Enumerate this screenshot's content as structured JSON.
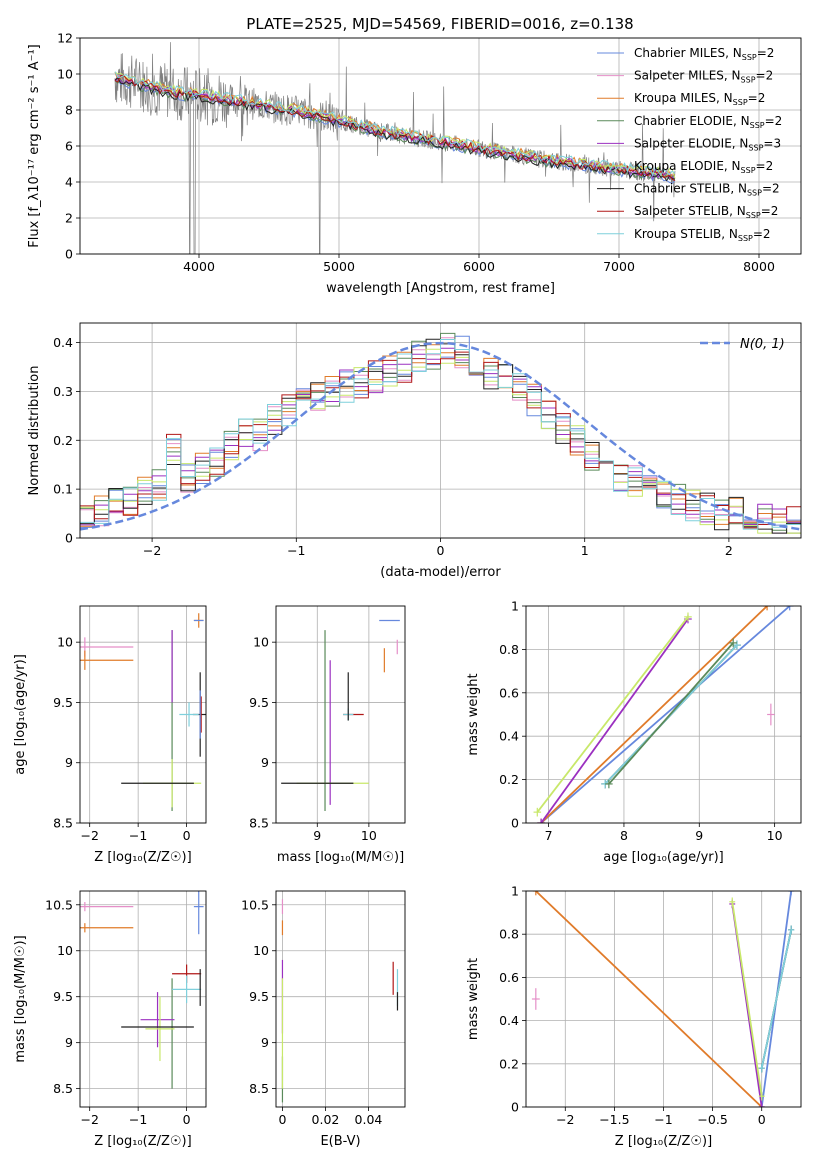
{
  "figure": {
    "title": "PLATE=2525, MJD=54569, FIBERID=0016, z=0.138"
  },
  "colors": {
    "grid": "#b0b0b0",
    "chabrier_miles": "#6688dd",
    "salpeter_miles": "#e58fc8",
    "kroupa_miles": "#e07b2a",
    "chabrier_elodie": "#5a8a5a",
    "salpeter_elodie": "#9b30c0",
    "kroupa_elodie": "#c8e86a",
    "chabrier_stelib": "#222222",
    "salpeter_stelib": "#b01818",
    "kroupa_stelib": "#7fd0dc",
    "data": "#7f7f7f",
    "normal": "#6688dd"
  },
  "chart_data": [
    {
      "type": "line",
      "id": "spectrum",
      "xlabel": "wavelength [Angstrom, rest frame]",
      "ylabel": "Flux [f_λ10⁻¹⁷ erg cm⁻² s⁻¹ A⁻¹]",
      "xlim": [
        3150,
        8300
      ],
      "ylim": [
        0,
        12
      ],
      "xticks": [
        4000,
        5000,
        6000,
        7000,
        8000
      ],
      "yticks": [
        0,
        2,
        4,
        6,
        8,
        10,
        12
      ],
      "grid": true,
      "legend_position": "top-right",
      "legend": [
        {
          "label": "Chabrier MILES, N",
          "sub": "SSP",
          "suffix": "=2",
          "color": "#6688dd"
        },
        {
          "label": "Salpeter MILES, N",
          "sub": "SSP",
          "suffix": "=2",
          "color": "#e58fc8"
        },
        {
          "label": "Kroupa MILES, N",
          "sub": "SSP",
          "suffix": "=2",
          "color": "#e07b2a"
        },
        {
          "label": "Chabrier ELODIE, N",
          "sub": "SSP",
          "suffix": "=2",
          "color": "#5a8a5a"
        },
        {
          "label": "Salpeter ELODIE, N",
          "sub": "SSP",
          "suffix": "=3",
          "color": "#9b30c0"
        },
        {
          "label": "Kroupa ELODIE, N",
          "sub": "SSP",
          "suffix": "=2",
          "color": "#c8e86a"
        },
        {
          "label": "Chabrier STELIB, N",
          "sub": "SSP",
          "suffix": "=2",
          "color": "#222222"
        },
        {
          "label": "Salpeter STELIB, N",
          "sub": "SSP",
          "suffix": "=2",
          "color": "#b01818"
        },
        {
          "label": "Kroupa STELIB, N",
          "sub": "SSP",
          "suffix": "=2",
          "color": "#7fd0dc"
        }
      ],
      "continuum": {
        "x": [
          3400,
          3600,
          3800,
          4000,
          4200,
          4500,
          4800,
          5000,
          5300,
          5600,
          5900,
          6200,
          6500,
          6800,
          7100,
          7400
        ],
        "y": [
          9.8,
          9.4,
          9.0,
          8.8,
          8.6,
          8.2,
          7.8,
          7.4,
          6.8,
          6.4,
          6.0,
          5.6,
          5.2,
          4.9,
          4.6,
          4.3
        ]
      }
    },
    {
      "type": "area",
      "id": "residuals",
      "xlabel": "(data-model)/error",
      "ylabel": "Normed distribution",
      "xlim": [
        -2.5,
        2.5
      ],
      "ylim": [
        0,
        0.44
      ],
      "xticks": [
        -2,
        -1,
        0,
        1,
        2
      ],
      "yticks": [
        0.0,
        0.1,
        0.2,
        0.3,
        0.4
      ],
      "grid": true,
      "legend_position": "top-right",
      "legend_label": "N(0, 1)",
      "hist_centers": [
        -2.45,
        -2.35,
        -2.25,
        -2.15,
        -2.05,
        -1.95,
        -1.85,
        -1.75,
        -1.65,
        -1.55,
        -1.45,
        -1.35,
        -1.25,
        -1.15,
        -1.05,
        -0.95,
        -0.85,
        -0.75,
        -0.65,
        -0.55,
        -0.45,
        -0.35,
        -0.25,
        -0.15,
        -0.05,
        0.05,
        0.15,
        0.25,
        0.35,
        0.45,
        0.55,
        0.65,
        0.75,
        0.85,
        0.95,
        1.05,
        1.15,
        1.25,
        1.35,
        1.45,
        1.55,
        1.65,
        1.75,
        1.85,
        1.95,
        2.05,
        2.15,
        2.25,
        2.35,
        2.45
      ],
      "hist_base": [
        0.04,
        0.06,
        0.07,
        0.08,
        0.09,
        0.11,
        0.18,
        0.12,
        0.14,
        0.16,
        0.19,
        0.22,
        0.21,
        0.24,
        0.26,
        0.28,
        0.29,
        0.3,
        0.31,
        0.32,
        0.33,
        0.34,
        0.35,
        0.37,
        0.38,
        0.39,
        0.38,
        0.36,
        0.34,
        0.33,
        0.31,
        0.28,
        0.25,
        0.22,
        0.2,
        0.17,
        0.15,
        0.13,
        0.12,
        0.1,
        0.09,
        0.08,
        0.07,
        0.06,
        0.05,
        0.05,
        0.04,
        0.04,
        0.03,
        0.03
      ]
    },
    {
      "type": "scatter",
      "id": "z-age",
      "xlabel": "Z [log₁₀(Z/Z☉)]",
      "ylabel": "age  [log₁₀(age/yr)]",
      "xlim": [
        -2.2,
        0.4
      ],
      "ylim": [
        8.5,
        10.3
      ],
      "xticks": [
        -2,
        -1,
        0
      ],
      "yticks": [
        8.5,
        9.0,
        9.5,
        10.0
      ],
      "grid": true
    },
    {
      "type": "scatter",
      "id": "mass-age",
      "xlabel": "mass [log₁₀(M/M☉)]",
      "xlim": [
        8.2,
        10.7
      ],
      "ylim": [
        8.5,
        10.3
      ],
      "xticks": [
        9,
        10
      ],
      "yticks": [
        8.5,
        9.0,
        9.5,
        10.0
      ],
      "grid": true
    },
    {
      "type": "line",
      "id": "age-weight",
      "xlabel": "age  [log₁₀(age/yr)]",
      "ylabel": "mass weight",
      "xlim": [
        6.7,
        10.35
      ],
      "ylim": [
        0,
        1
      ],
      "xticks": [
        7,
        8,
        9,
        10
      ],
      "yticks": [
        0.0,
        0.2,
        0.4,
        0.6,
        0.8,
        1.0
      ],
      "grid": true
    },
    {
      "type": "scatter",
      "id": "z-mass",
      "xlabel": "Z [log₁₀(Z/Z☉)]",
      "ylabel": "mass [log₁₀(M/M☉)]",
      "xlim": [
        -2.2,
        0.4
      ],
      "ylim": [
        8.3,
        10.65
      ],
      "xticks": [
        -2,
        -1,
        0
      ],
      "yticks": [
        8.5,
        9.0,
        9.5,
        10.0,
        10.5
      ],
      "grid": true
    },
    {
      "type": "scatter",
      "id": "ebv-mass",
      "xlabel": "E(B-V)",
      "xlim": [
        -0.003,
        0.057
      ],
      "ylim": [
        8.3,
        10.65
      ],
      "xticks": [
        0.0,
        0.02,
        0.04
      ],
      "yticks": [
        8.5,
        9.0,
        9.5,
        10.0,
        10.5
      ],
      "grid": true
    },
    {
      "type": "line",
      "id": "z-weight",
      "xlabel": "Z [log₁₀(Z/Z☉)]",
      "ylabel": "mass weight",
      "xlim": [
        -2.4,
        0.4
      ],
      "ylim": [
        0,
        1
      ],
      "xticks": [
        -2.0,
        -1.5,
        -1.0,
        -0.5,
        0.0
      ],
      "yticks": [
        0.0,
        0.2,
        0.4,
        0.6,
        0.8,
        1.0
      ],
      "grid": true
    }
  ]
}
